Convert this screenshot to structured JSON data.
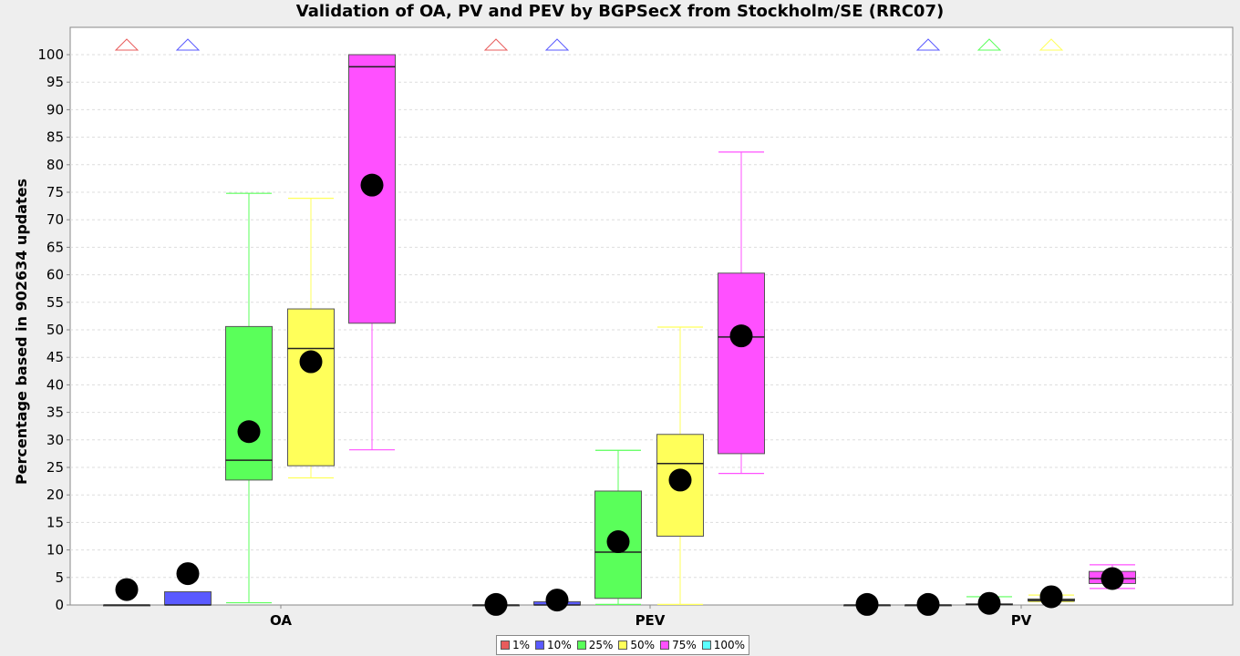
{
  "chart_data": {
    "type": "boxplot",
    "title": "Validation of OA, PV and PEV by BGPSecX from Stockholm/SE (RRC07)",
    "ylabel": "Percentage based in 902634 updates",
    "xlabel": "",
    "ylim": [
      0,
      105
    ],
    "yticks": [
      0,
      5,
      10,
      15,
      20,
      25,
      30,
      35,
      40,
      45,
      50,
      55,
      60,
      65,
      70,
      75,
      80,
      85,
      90,
      95,
      100
    ],
    "grid": true,
    "legend_position": "bottom",
    "categories": [
      "OA",
      "PEV",
      "PV"
    ],
    "series": [
      {
        "name": "1%",
        "color": "#e85c5c",
        "boxes": [
          {
            "min": 0,
            "q1": 0,
            "median": 0,
            "q3": 0,
            "max": 0,
            "mean": 2.8,
            "outlier_above": true
          },
          {
            "min": 0,
            "q1": 0,
            "median": 0,
            "q3": 0,
            "max": 0,
            "mean": 0.1,
            "outlier_above": true
          },
          {
            "min": 0,
            "q1": 0,
            "median": 0,
            "q3": 0,
            "max": 0,
            "mean": 0.1,
            "outlier_above": false
          }
        ]
      },
      {
        "name": "10%",
        "color": "#5a5aff",
        "boxes": [
          {
            "min": 0,
            "q1": 0,
            "median": 0,
            "q3": 2.4,
            "max": 2.4,
            "mean": 5.7,
            "outlier_above": true
          },
          {
            "min": 0,
            "q1": 0,
            "median": 0,
            "q3": 0.6,
            "max": 0.6,
            "mean": 0.9,
            "outlier_above": true
          },
          {
            "min": 0,
            "q1": 0,
            "median": 0,
            "q3": 0,
            "max": 0,
            "mean": 0.1,
            "outlier_above": true
          }
        ]
      },
      {
        "name": "25%",
        "color": "#5aff5a",
        "boxes": [
          {
            "min": 0.4,
            "q1": 22.7,
            "median": 26.3,
            "q3": 50.6,
            "max": 74.8,
            "mean": 31.5,
            "outlier_above": false
          },
          {
            "min": 0.1,
            "q1": 1.2,
            "median": 9.6,
            "q3": 20.7,
            "max": 28.1,
            "mean": 11.5,
            "outlier_above": false
          },
          {
            "min": 0,
            "q1": 0,
            "median": 0.1,
            "q3": 0.2,
            "max": 1.5,
            "mean": 0.3,
            "outlier_above": true
          }
        ]
      },
      {
        "name": "50%",
        "color": "#ffff5a",
        "boxes": [
          {
            "min": 23.1,
            "q1": 25.3,
            "median": 46.6,
            "q3": 53.8,
            "max": 73.9,
            "mean": 44.2,
            "outlier_above": false
          },
          {
            "min": 0.1,
            "q1": 12.5,
            "median": 25.7,
            "q3": 31.0,
            "max": 50.5,
            "mean": 22.7,
            "outlier_above": false
          },
          {
            "min": 0.6,
            "q1": 0.7,
            "median": 0.9,
            "q3": 1.1,
            "max": 1.8,
            "mean": 1.5,
            "outlier_above": true
          }
        ]
      },
      {
        "name": "75%",
        "color": "#ff50ff",
        "boxes": [
          {
            "min": 28.2,
            "q1": 51.2,
            "median": 97.8,
            "q3": 100,
            "max": 100,
            "mean": 76.3,
            "outlier_above": false
          },
          {
            "min": 23.9,
            "q1": 27.5,
            "median": 48.7,
            "q3": 60.3,
            "max": 82.3,
            "mean": 48.9,
            "outlier_above": false
          },
          {
            "min": 3.0,
            "q1": 3.9,
            "median": 4.8,
            "q3": 6.1,
            "max": 7.3,
            "mean": 4.8,
            "outlier_above": false
          }
        ]
      },
      {
        "name": "100%",
        "color": "#5affff",
        "boxes": [
          null,
          null,
          null
        ]
      }
    ]
  }
}
